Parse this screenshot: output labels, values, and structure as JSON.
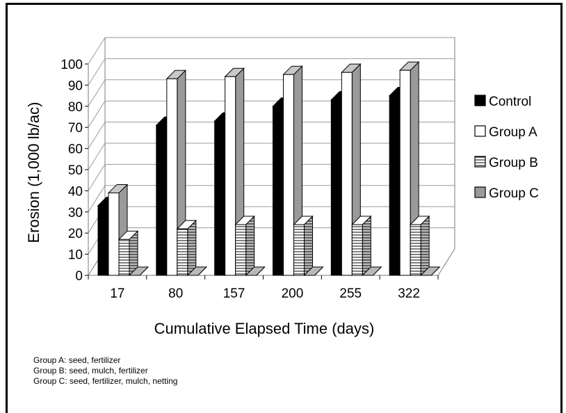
{
  "chart_data": {
    "type": "bar",
    "subtype": "3d-clustered-column",
    "categories": [
      "17",
      "80",
      "157",
      "200",
      "255",
      "322"
    ],
    "series": [
      {
        "name": "Control",
        "values": [
          33,
          71,
          73,
          80,
          83,
          85
        ],
        "color": "#000000",
        "pattern": "solid"
      },
      {
        "name": "Group A",
        "values": [
          39,
          93,
          94,
          95,
          96,
          97
        ],
        "color": "#ffffff",
        "pattern": "solid"
      },
      {
        "name": "Group B",
        "values": [
          17,
          22,
          24,
          24,
          24,
          24
        ],
        "color": "#ffffff",
        "pattern": "horizontal-lines"
      },
      {
        "name": "Group C",
        "values": [
          0,
          0,
          0,
          0,
          0,
          0
        ],
        "color": "#9a9a9a",
        "pattern": "solid"
      }
    ],
    "xlabel": "Cumulative Elapsed Time (days)",
    "ylabel": "Erosion (1,000 lb/ac)",
    "ylim": [
      0,
      100
    ],
    "yticks": [
      0,
      10,
      20,
      30,
      40,
      50,
      60,
      70,
      80,
      90,
      100
    ],
    "grid": true,
    "legend_position": "right"
  },
  "notes": [
    "Group A: seed, fertilizer",
    "Group B: seed, mulch, fertilizer",
    "Group C: seed, fertilizer, mulch, netting"
  ]
}
